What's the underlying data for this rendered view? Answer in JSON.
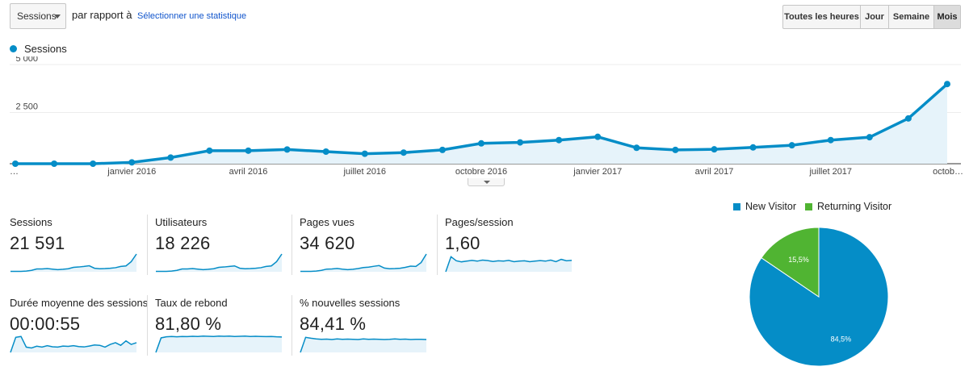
{
  "toolbar": {
    "metric_select": "Sessions",
    "compare_label": "par rapport à",
    "select_stat_link": "Sélectionner une statistique",
    "periods": [
      {
        "label": "Toutes les heures",
        "active": false
      },
      {
        "label": "Jour",
        "active": false
      },
      {
        "label": "Semaine",
        "active": false
      },
      {
        "label": "Mois",
        "active": true
      }
    ]
  },
  "legend": {
    "series_name": "Sessions",
    "color": "#058dc7"
  },
  "chart_data": {
    "type": "area",
    "series_name": "Sessions",
    "x": [
      "…",
      "",
      "",
      "janvier 2016",
      "",
      "",
      "avril 2016",
      "",
      "",
      "juillet 2016",
      "",
      "",
      "octobre 2016",
      "",
      "",
      "janvier 2017",
      "",
      "",
      "avril 2017",
      "",
      "",
      "juillet 2017",
      "",
      "",
      "octob…"
    ],
    "values": [
      0,
      0,
      0,
      70,
      320,
      680,
      680,
      740,
      630,
      520,
      580,
      720,
      1060,
      1110,
      1230,
      1400,
      830,
      720,
      750,
      850,
      960,
      1230,
      1380,
      2360,
      4150
    ],
    "y_ticks": [
      {
        "value": 5000,
        "label": "5 000"
      },
      {
        "value": 2500,
        "label": "2 500"
      }
    ],
    "ylim": [
      0,
      5000
    ],
    "grid": true,
    "line_color": "#058dc7",
    "fill_color": "#e6f3fa"
  },
  "kpis": [
    {
      "label": "Sessions",
      "value": "21 591",
      "spark": [
        0.02,
        0.02,
        0.02,
        0.04,
        0.08,
        0.16,
        0.16,
        0.18,
        0.15,
        0.12,
        0.14,
        0.17,
        0.25,
        0.27,
        0.3,
        0.34,
        0.2,
        0.17,
        0.18,
        0.2,
        0.23,
        0.3,
        0.33,
        0.57,
        1.0
      ]
    },
    {
      "label": "Utilisateurs",
      "value": "18 226",
      "spark": [
        0.02,
        0.02,
        0.02,
        0.04,
        0.08,
        0.16,
        0.16,
        0.18,
        0.15,
        0.12,
        0.14,
        0.17,
        0.25,
        0.27,
        0.3,
        0.33,
        0.2,
        0.17,
        0.18,
        0.2,
        0.23,
        0.3,
        0.33,
        0.57,
        1.0
      ]
    },
    {
      "label": "Pages vues",
      "value": "34 620",
      "spark": [
        0.02,
        0.02,
        0.02,
        0.04,
        0.08,
        0.15,
        0.16,
        0.19,
        0.15,
        0.12,
        0.14,
        0.18,
        0.24,
        0.26,
        0.31,
        0.35,
        0.21,
        0.17,
        0.18,
        0.2,
        0.25,
        0.32,
        0.3,
        0.52,
        1.0
      ]
    },
    {
      "label": "Pages/session",
      "value": "1,60",
      "spark": [
        0.0,
        0.85,
        0.62,
        0.56,
        0.6,
        0.64,
        0.6,
        0.66,
        0.63,
        0.58,
        0.62,
        0.6,
        0.64,
        0.57,
        0.6,
        0.62,
        0.57,
        0.6,
        0.63,
        0.6,
        0.66,
        0.57,
        0.7,
        0.62,
        0.64
      ]
    },
    {
      "label": "Durée moyenne des sessions",
      "value": "00:00:55",
      "spark": [
        0.0,
        0.85,
        0.9,
        0.3,
        0.25,
        0.35,
        0.3,
        0.38,
        0.32,
        0.3,
        0.36,
        0.34,
        0.38,
        0.33,
        0.31,
        0.36,
        0.42,
        0.4,
        0.3,
        0.45,
        0.55,
        0.4,
        0.65,
        0.45,
        0.55
      ]
    },
    {
      "label": "Taux de rebond",
      "value": "81,80 %",
      "spark": [
        0.0,
        0.82,
        0.88,
        0.9,
        0.88,
        0.9,
        0.89,
        0.91,
        0.9,
        0.92,
        0.91,
        0.9,
        0.92,
        0.91,
        0.92,
        0.9,
        0.91,
        0.92,
        0.9,
        0.91,
        0.9,
        0.89,
        0.9,
        0.88,
        0.87
      ]
    },
    {
      "label": "% nouvelles sessions",
      "value": "84,41 %",
      "spark": [
        0.0,
        0.85,
        0.8,
        0.76,
        0.74,
        0.75,
        0.73,
        0.76,
        0.74,
        0.75,
        0.74,
        0.73,
        0.76,
        0.74,
        0.75,
        0.74,
        0.73,
        0.74,
        0.76,
        0.74,
        0.75,
        0.73,
        0.74,
        0.74,
        0.73
      ]
    }
  ],
  "pie": {
    "legend": [
      {
        "name": "New Visitor",
        "color": "#058dc7"
      },
      {
        "name": "Returning Visitor",
        "color": "#50b432"
      }
    ],
    "chart_data": {
      "type": "pie",
      "slices": [
        {
          "name": "New Visitor",
          "value": 84.5,
          "label": "84,5%",
          "color": "#058dc7"
        },
        {
          "name": "Returning Visitor",
          "value": 15.5,
          "label": "15,5%",
          "color": "#50b432"
        }
      ]
    }
  }
}
